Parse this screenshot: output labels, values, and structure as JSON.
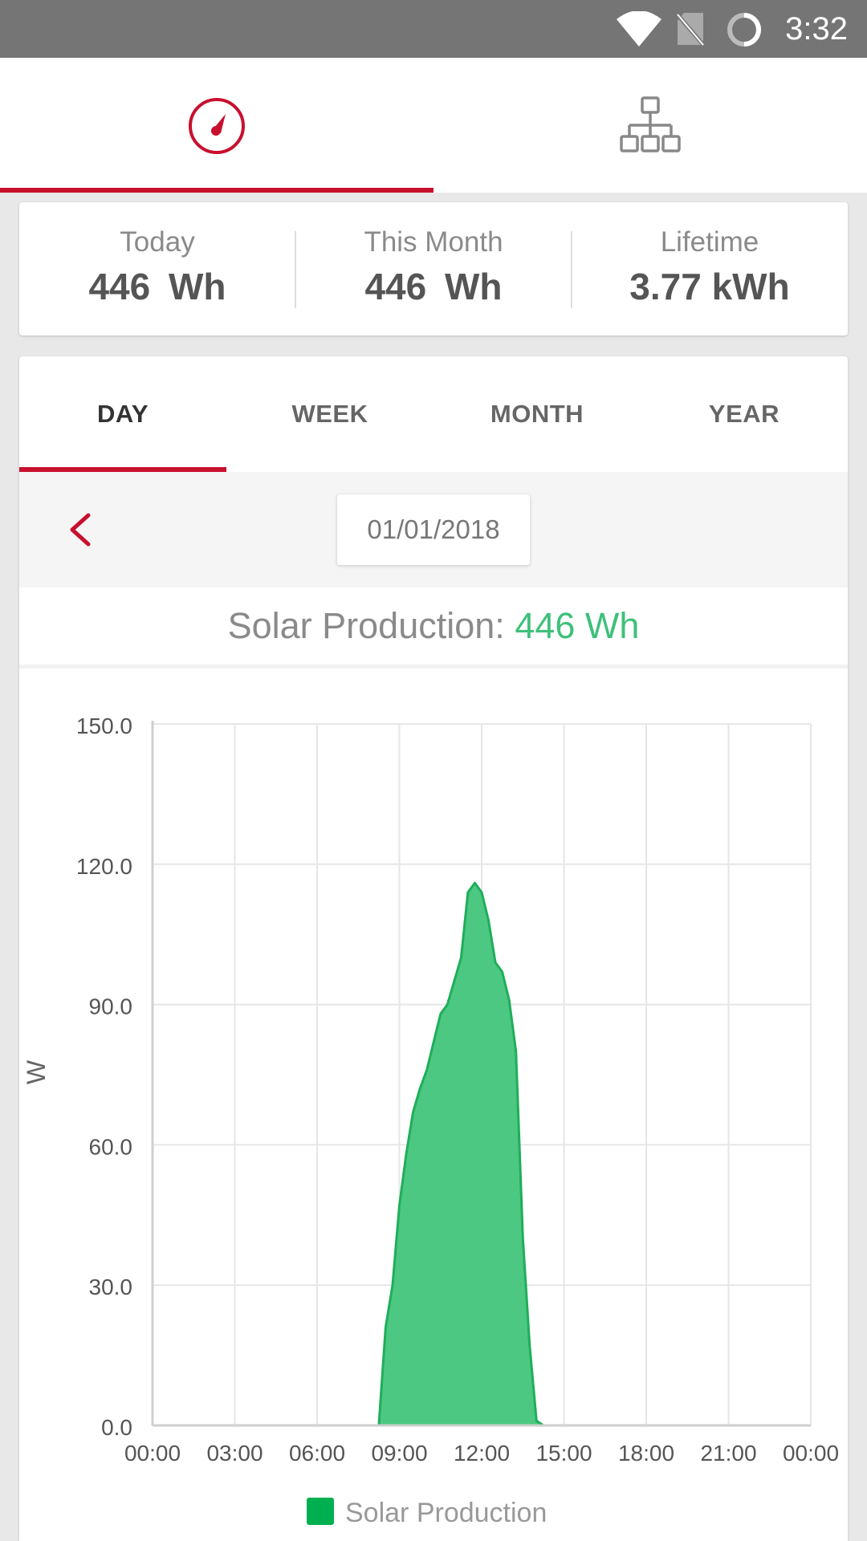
{
  "status_bar": {
    "time": "3:32",
    "icons": [
      "wifi-icon",
      "no-sim-icon",
      "sync-icon"
    ]
  },
  "top_nav": {
    "tabs": [
      {
        "icon": "gauge-icon",
        "active": true
      },
      {
        "icon": "hierarchy-icon",
        "active": false
      }
    ]
  },
  "summary": {
    "today_label": "Today",
    "today_value": "446 Wh",
    "month_label": "This Month",
    "month_value": "446 Wh",
    "lifetime_label": "Lifetime",
    "lifetime_value": "3.77 kWh"
  },
  "period_tabs": [
    {
      "label": "DAY",
      "active": true
    },
    {
      "label": "WEEK",
      "active": false
    },
    {
      "label": "MONTH",
      "active": false
    },
    {
      "label": "YEAR",
      "active": false
    }
  ],
  "date_selector": {
    "date": "01/01/2018",
    "back_icon": "chevron-left-icon"
  },
  "production": {
    "label": "Solar Production:",
    "value": "446 Wh"
  },
  "colors": {
    "accent": "#c8102e",
    "production_green": "#3fc07a",
    "fill_green": "#4cc882",
    "legend_green": "#00b050"
  },
  "chart_data": {
    "type": "area",
    "title": "",
    "xlabel": "",
    "ylabel": "W",
    "ylim": [
      0,
      150
    ],
    "xlim": [
      0,
      24
    ],
    "grid": true,
    "legend_position": "bottom-center",
    "y_ticks": [
      "150.0",
      "120.0",
      "90.0",
      "60.0",
      "30.0",
      "0.0"
    ],
    "x_ticks": [
      "00:00",
      "03:00",
      "06:00",
      "09:00",
      "12:00",
      "15:00",
      "18:00",
      "21:00",
      "00:00"
    ],
    "series": [
      {
        "name": "Solar Production",
        "x": [
          0.75,
          8.25,
          8.5,
          8.75,
          9.0,
          9.25,
          9.5,
          9.75,
          10.0,
          10.25,
          10.5,
          10.75,
          11.0,
          11.25,
          11.5,
          11.75,
          12.0,
          12.25,
          12.5,
          12.75,
          13.0,
          13.25,
          13.5,
          13.75,
          14.0,
          14.25,
          15.0
        ],
        "values": [
          0,
          0,
          21,
          30,
          47,
          58,
          67,
          72,
          76,
          82,
          88,
          90,
          95,
          100,
          114,
          116,
          114,
          108,
          99,
          97,
          91,
          80,
          40,
          17,
          1,
          0,
          0
        ]
      }
    ]
  }
}
